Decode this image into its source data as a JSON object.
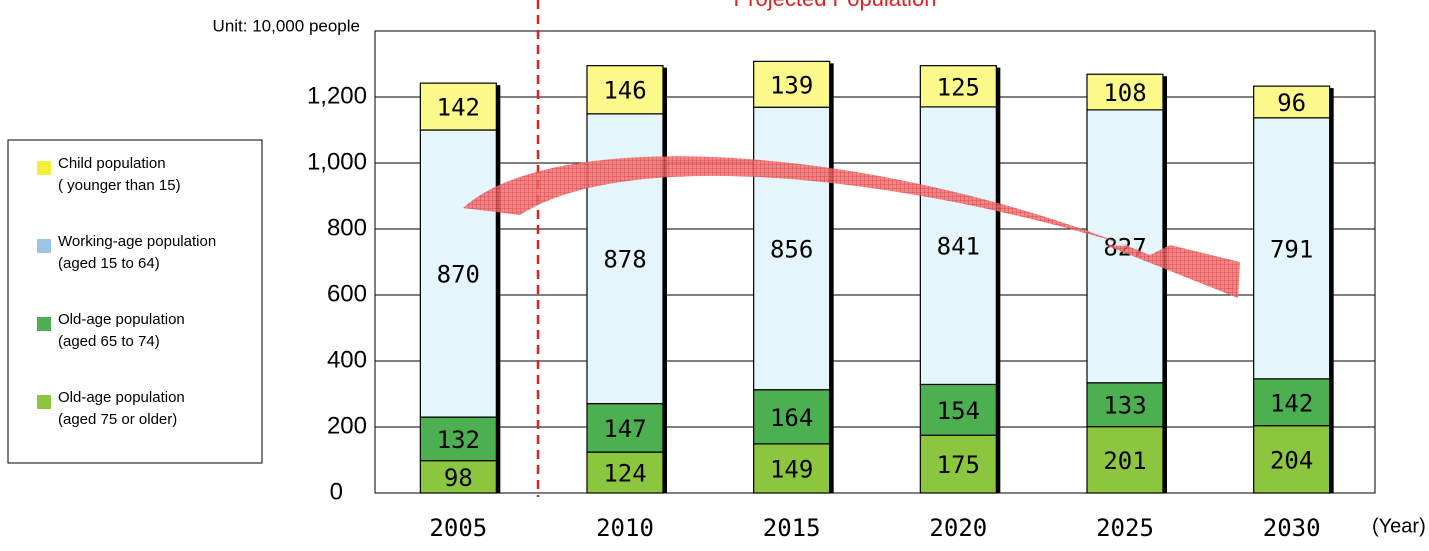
{
  "chart_data": {
    "type": "stacked-bar",
    "title": "Projected Population",
    "y_unit_label": "Unit: 10,000 people",
    "x_unit_label": "(Year)",
    "categories": [
      "2005",
      "2010",
      "2015",
      "2020",
      "2025",
      "2030"
    ],
    "series": [
      {
        "name": "Child population\n( younger than 15)",
        "color": "#f3ef3c",
        "values": [
          142,
          146,
          139,
          125,
          108,
          96
        ]
      },
      {
        "name": "Working-age population\n(aged 15 to 64)",
        "color": "#9dc3e6",
        "values": [
          870,
          878,
          856,
          841,
          827,
          791
        ]
      },
      {
        "name": "Old-age population\n(aged 65 to 74)",
        "color": "#4caf50",
        "values": [
          132,
          147,
          164,
          154,
          133,
          142
        ]
      },
      {
        "name": "Old-age population\n(aged 75 or older)",
        "color": "#8cc63f",
        "values": [
          98,
          124,
          149,
          175,
          201,
          204
        ]
      }
    ],
    "ylim": [
      0,
      1400
    ],
    "yticks": [
      0,
      200,
      400,
      600,
      800,
      {
        "value": 1000,
        "label": "1,000"
      },
      {
        "value": 1200,
        "label": "1,200"
      }
    ],
    "grid": true
  }
}
